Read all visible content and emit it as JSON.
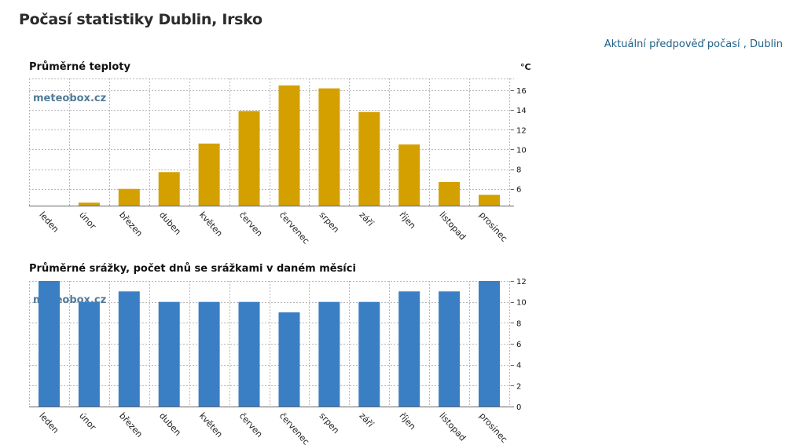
{
  "page": {
    "title": "Počasí statistiky Dublin, Irsko",
    "forecast_link": "Aktuální předpověď počasí , Dublin"
  },
  "colors": {
    "temperature_bar": "#d4a000",
    "precipitation_bar": "#3a7fc4",
    "link": "#1f5f87"
  },
  "chart_data": [
    {
      "type": "bar",
      "title": "Průměrné teploty",
      "unit": "°C",
      "watermark": "meteobox.cz",
      "categories": [
        "leden",
        "únor",
        "březen",
        "duben",
        "květen",
        "červen",
        "červenec",
        "srpen",
        "září",
        "říjen",
        "listopad",
        "prosinec"
      ],
      "values": [
        4.3,
        4.6,
        6.0,
        7.7,
        10.6,
        13.9,
        16.5,
        16.2,
        13.8,
        10.5,
        6.7,
        5.4
      ],
      "ylim": [
        4.3,
        17.2
      ],
      "yticks": [
        6,
        8,
        10,
        12,
        14,
        16
      ],
      "grid": true,
      "y_axis_side": "right"
    },
    {
      "type": "bar",
      "title": "Průměrné srážky, počet dnů se srážkami v daném měsíci",
      "watermark": "meteobox.cz",
      "categories": [
        "leden",
        "únor",
        "březen",
        "duben",
        "květen",
        "červen",
        "červenec",
        "srpen",
        "září",
        "říjen",
        "listopad",
        "prosinec"
      ],
      "values": [
        12,
        10,
        11,
        10,
        10,
        10,
        9,
        10,
        10,
        11,
        11,
        12
      ],
      "ylim": [
        0,
        12
      ],
      "yticks": [
        0,
        2,
        4,
        6,
        8,
        10,
        12
      ],
      "grid": true,
      "y_axis_side": "right"
    }
  ]
}
